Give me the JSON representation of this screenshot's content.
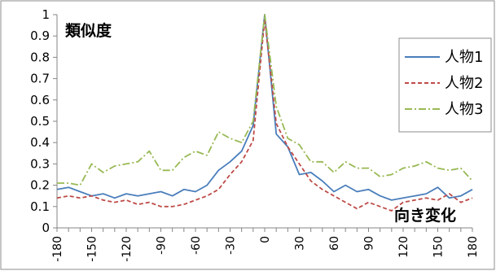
{
  "chart_data": {
    "type": "line",
    "title": "",
    "xlabel": "",
    "ylabel": "",
    "annotations": {
      "top_left": "類似度",
      "bottom_right": "向き変化"
    },
    "x": [
      -180,
      -170,
      -160,
      -150,
      -140,
      -130,
      -120,
      -110,
      -100,
      -90,
      -80,
      -70,
      -60,
      -50,
      -40,
      -30,
      -20,
      -10,
      0,
      10,
      20,
      30,
      40,
      50,
      60,
      70,
      80,
      90,
      100,
      110,
      120,
      130,
      140,
      150,
      160,
      170,
      180
    ],
    "x_ticks": [
      -180,
      -150,
      -120,
      -90,
      -60,
      -30,
      0,
      30,
      60,
      90,
      120,
      150,
      180
    ],
    "ylim": [
      0,
      1
    ],
    "y_ticks": [
      "0",
      "0.1",
      "0.2",
      "0.3",
      "0.4",
      "0.5",
      "0.6",
      "0.7",
      "0.8",
      "0.9",
      "1"
    ],
    "grid": false,
    "legend_position": "top-right",
    "series": [
      {
        "name": "人物1",
        "color": "#4a7ebb",
        "dash": "solid",
        "values": [
          0.18,
          0.19,
          0.17,
          0.15,
          0.16,
          0.14,
          0.16,
          0.15,
          0.16,
          0.17,
          0.15,
          0.18,
          0.17,
          0.2,
          0.27,
          0.31,
          0.36,
          0.48,
          1.0,
          0.44,
          0.38,
          0.25,
          0.26,
          0.22,
          0.17,
          0.2,
          0.17,
          0.18,
          0.15,
          0.13,
          0.14,
          0.15,
          0.16,
          0.19,
          0.14,
          0.15,
          0.18
        ]
      },
      {
        "name": "人物2",
        "color": "#be4b48",
        "dash": "dashed",
        "values": [
          0.14,
          0.15,
          0.14,
          0.15,
          0.13,
          0.12,
          0.13,
          0.11,
          0.12,
          0.1,
          0.1,
          0.11,
          0.13,
          0.15,
          0.18,
          0.25,
          0.31,
          0.41,
          0.98,
          0.49,
          0.38,
          0.3,
          0.22,
          0.18,
          0.15,
          0.12,
          0.09,
          0.12,
          0.1,
          0.08,
          0.12,
          0.13,
          0.14,
          0.13,
          0.16,
          0.12,
          0.14
        ]
      },
      {
        "name": "人物3",
        "color": "#98b954",
        "dash": "dashdot",
        "values": [
          0.21,
          0.21,
          0.2,
          0.3,
          0.26,
          0.29,
          0.3,
          0.31,
          0.36,
          0.27,
          0.27,
          0.33,
          0.36,
          0.34,
          0.45,
          0.42,
          0.4,
          0.5,
          1.0,
          0.57,
          0.42,
          0.39,
          0.31,
          0.31,
          0.26,
          0.31,
          0.28,
          0.28,
          0.24,
          0.25,
          0.28,
          0.29,
          0.31,
          0.28,
          0.27,
          0.28,
          0.22
        ]
      }
    ]
  }
}
